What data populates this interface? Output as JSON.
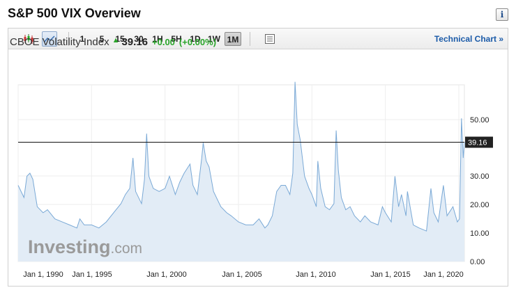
{
  "header": {
    "title": "S&P 500 VIX Overview",
    "info_label": "i"
  },
  "toolbar": {
    "timeframes": [
      "1",
      "5",
      "15",
      "30",
      "1H",
      "5H",
      "1D",
      "1W",
      "1M"
    ],
    "selected_timeframe": "1M",
    "technical_link": "Technical Chart »"
  },
  "quote": {
    "name": "CBOE Volatility Index",
    "arrow": "▲",
    "last": "39.16",
    "change": "+0.00",
    "change_pct": "(+0.00%)"
  },
  "colors": {
    "line": "#7aa9d6",
    "area": "#e2ecf6",
    "up": "#2aa52a",
    "price_label_bg": "#222222"
  },
  "watermark": {
    "main": "Investing",
    "suffix": ".com"
  },
  "chart_data": {
    "type": "area",
    "title": "",
    "xlabel": "",
    "ylabel": "",
    "x_ticks": [
      "Jan 1, 1990",
      "Jan 1, 1995",
      "Jan 1, 2000",
      "Jan 1, 2005",
      "Jan 1, 2010",
      "Jan 1, 2015",
      "Jan 1, 2020"
    ],
    "y_ticks": [
      "0.00",
      "10.00",
      "20.00",
      "30.00",
      "50.00"
    ],
    "ylim": [
      0,
      58
    ],
    "xlim": [
      "1990-01",
      "2020-05"
    ],
    "current_price": 39.16,
    "current_price_label": "39.16",
    "series": [
      {
        "values": [
          [
            1990.0,
            25
          ],
          [
            1990.4,
            21
          ],
          [
            1990.6,
            28
          ],
          [
            1990.8,
            29
          ],
          [
            1991.0,
            27
          ],
          [
            1991.3,
            18
          ],
          [
            1991.7,
            16
          ],
          [
            1992.0,
            17
          ],
          [
            1992.5,
            14
          ],
          [
            1993.0,
            13
          ],
          [
            1993.5,
            12
          ],
          [
            1994.0,
            11
          ],
          [
            1994.2,
            14
          ],
          [
            1994.5,
            12
          ],
          [
            1995.0,
            12
          ],
          [
            1995.5,
            11
          ],
          [
            1996.0,
            13
          ],
          [
            1996.5,
            16
          ],
          [
            1997.0,
            19
          ],
          [
            1997.3,
            22
          ],
          [
            1997.6,
            24
          ],
          [
            1997.82,
            34
          ],
          [
            1998.0,
            23
          ],
          [
            1998.4,
            19
          ],
          [
            1998.6,
            27
          ],
          [
            1998.75,
            42
          ],
          [
            1998.9,
            28
          ],
          [
            1999.2,
            24
          ],
          [
            1999.6,
            23
          ],
          [
            2000.0,
            24
          ],
          [
            2000.3,
            28
          ],
          [
            2000.7,
            22
          ],
          [
            2001.0,
            26
          ],
          [
            2001.3,
            29
          ],
          [
            2001.7,
            32
          ],
          [
            2001.9,
            25
          ],
          [
            2002.2,
            22
          ],
          [
            2002.5,
            34
          ],
          [
            2002.6,
            39
          ],
          [
            2002.8,
            33
          ],
          [
            2003.0,
            31
          ],
          [
            2003.3,
            23
          ],
          [
            2003.8,
            18
          ],
          [
            2004.2,
            16
          ],
          [
            2004.5,
            15
          ],
          [
            2005.0,
            13
          ],
          [
            2005.5,
            12
          ],
          [
            2006.0,
            12
          ],
          [
            2006.4,
            14
          ],
          [
            2006.8,
            11
          ],
          [
            2007.0,
            12
          ],
          [
            2007.3,
            15
          ],
          [
            2007.6,
            23
          ],
          [
            2007.9,
            25
          ],
          [
            2008.2,
            25
          ],
          [
            2008.5,
            22
          ],
          [
            2008.7,
            29
          ],
          [
            2008.85,
            59
          ],
          [
            2009.0,
            45
          ],
          [
            2009.2,
            40
          ],
          [
            2009.5,
            28
          ],
          [
            2009.8,
            24
          ],
          [
            2010.0,
            22
          ],
          [
            2010.3,
            18
          ],
          [
            2010.4,
            33
          ],
          [
            2010.6,
            24
          ],
          [
            2010.9,
            18
          ],
          [
            2011.2,
            17
          ],
          [
            2011.5,
            19
          ],
          [
            2011.65,
            43
          ],
          [
            2011.8,
            30
          ],
          [
            2012.0,
            21
          ],
          [
            2012.3,
            17
          ],
          [
            2012.6,
            18
          ],
          [
            2012.9,
            15
          ],
          [
            2013.3,
            13
          ],
          [
            2013.6,
            15
          ],
          [
            2014.0,
            13
          ],
          [
            2014.5,
            12
          ],
          [
            2014.8,
            18
          ],
          [
            2015.0,
            16
          ],
          [
            2015.4,
            13
          ],
          [
            2015.65,
            28
          ],
          [
            2015.9,
            18
          ],
          [
            2016.1,
            22
          ],
          [
            2016.4,
            15
          ],
          [
            2016.5,
            23
          ],
          [
            2016.9,
            12
          ],
          [
            2017.3,
            11
          ],
          [
            2017.8,
            10
          ],
          [
            2018.1,
            24
          ],
          [
            2018.3,
            16
          ],
          [
            2018.6,
            13
          ],
          [
            2018.95,
            25
          ],
          [
            2019.2,
            15
          ],
          [
            2019.6,
            18
          ],
          [
            2019.9,
            13
          ],
          [
            2020.05,
            14
          ],
          [
            2020.18,
            47
          ],
          [
            2020.3,
            34
          ],
          [
            2020.38,
            39.16
          ]
        ]
      }
    ]
  }
}
